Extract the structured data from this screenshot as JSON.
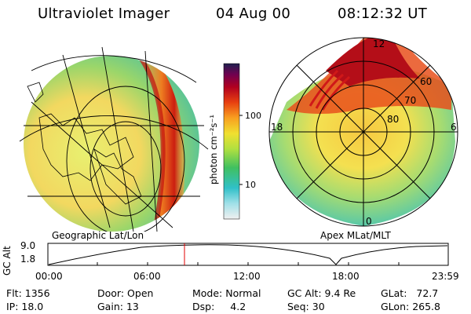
{
  "header": {
    "instrument": "Ultraviolet Imager",
    "date": "04 Aug 00",
    "time": "08:12:32 UT"
  },
  "left_panel": {
    "label": "Geographic Lat/Lon"
  },
  "right_panel": {
    "label": "Apex MLat/MLT",
    "mlt_labels": {
      "top": "12",
      "left": "18",
      "right": "6",
      "bottom": "0"
    },
    "lat_labels": [
      "60",
      "70",
      "80"
    ]
  },
  "colorbar": {
    "unit_label": "photon cm⁻²s⁻¹",
    "ticks": [
      "100",
      "10"
    ]
  },
  "altitude_plot": {
    "ylabel": "GC Alt",
    "yticks": [
      "9.0",
      "1.8"
    ],
    "xticks": [
      "00:00",
      "06:00",
      "12:00",
      "18:00",
      "23:59"
    ],
    "marker_time": "08:12"
  },
  "stats": {
    "flt": {
      "label": "Flt:",
      "value": "1356"
    },
    "ip": {
      "label": "IP:",
      "value": "18.0"
    },
    "door": {
      "label": "Door:",
      "value": "Open"
    },
    "gain": {
      "label": "Gain:",
      "value": "13"
    },
    "mode": {
      "label": "Mode:",
      "value": "Normal"
    },
    "dsp": {
      "label": "Dsp:",
      "value": "4.2"
    },
    "gcalt": {
      "label": "GC Alt:",
      "value": "9.4 Re"
    },
    "seq": {
      "label": "Seq:",
      "value": "30"
    },
    "glat": {
      "label": "GLat:",
      "value": "72.7"
    },
    "glon": {
      "label": "GLon:",
      "value": "265.8"
    }
  },
  "colors": {
    "red_marker": "#e00000",
    "grid_line": "#000000"
  }
}
